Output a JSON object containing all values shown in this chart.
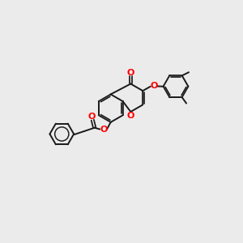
{
  "background_color": "#ebebeb",
  "bond_color": "#1a1a1a",
  "red": "#ff0000",
  "figsize": [
    3.0,
    3.0
  ],
  "dpi": 100,
  "lw": 1.4,
  "ring_r": 0.52,
  "xlim": [
    0,
    10
  ],
  "ylim": [
    0,
    10
  ]
}
